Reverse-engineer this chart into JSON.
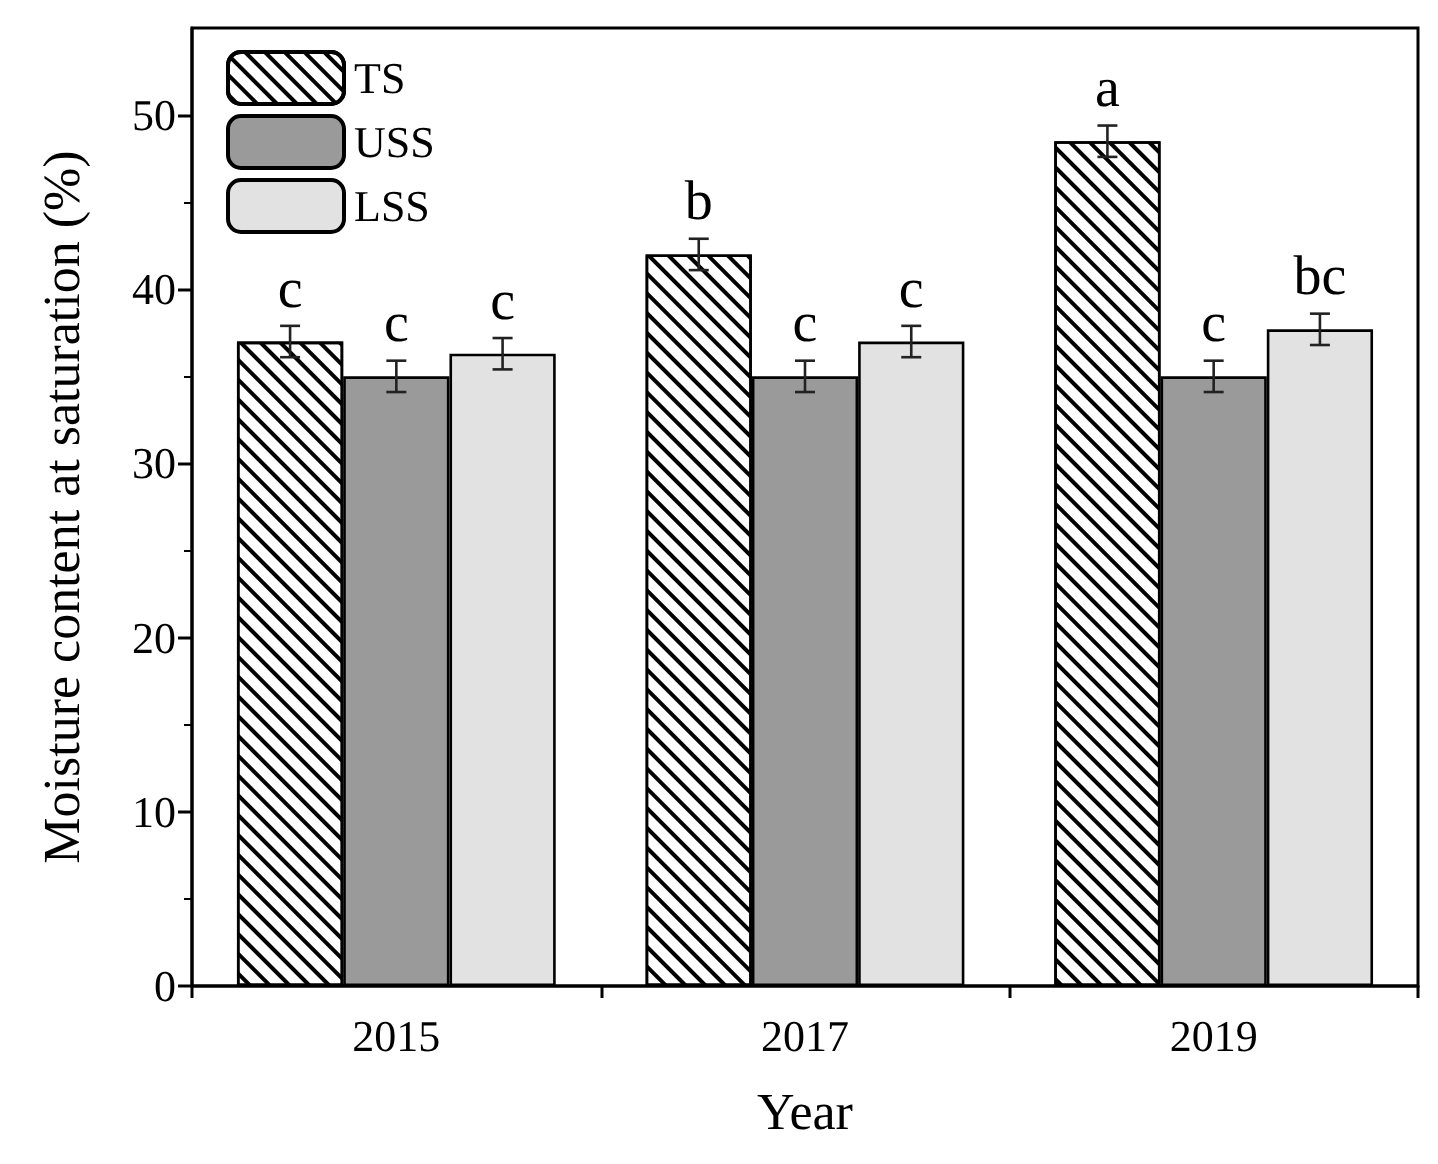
{
  "chart_data": {
    "type": "bar",
    "xlabel": "Year",
    "ylabel": "Moisture content at saturation (%)",
    "categories": [
      "2015",
      "2017",
      "2019"
    ],
    "series": [
      {
        "name": "TS",
        "color": "#ffffff",
        "values": [
          37,
          42,
          48.5
        ],
        "errors": [
          0.9,
          0.9,
          0.9
        ],
        "value_labels": [
          "c",
          "b",
          "a"
        ]
      },
      {
        "name": "USS",
        "color": "#9a9a9a",
        "values": [
          35,
          35,
          35
        ],
        "errors": [
          0.9,
          0.9,
          0.9
        ],
        "value_labels": [
          "c",
          "c",
          "c"
        ]
      },
      {
        "name": "LSS",
        "color": "#e2e2e2",
        "values": [
          36.3,
          37,
          37.7
        ],
        "errors": [
          0.9,
          0.9,
          0.9
        ],
        "value_labels": [
          "c",
          "c",
          "bc"
        ]
      }
    ],
    "ylim": [
      0,
      55
    ],
    "yticks": [
      0,
      10,
      20,
      30,
      40,
      50
    ],
    "grid": false,
    "legend": "top left"
  }
}
